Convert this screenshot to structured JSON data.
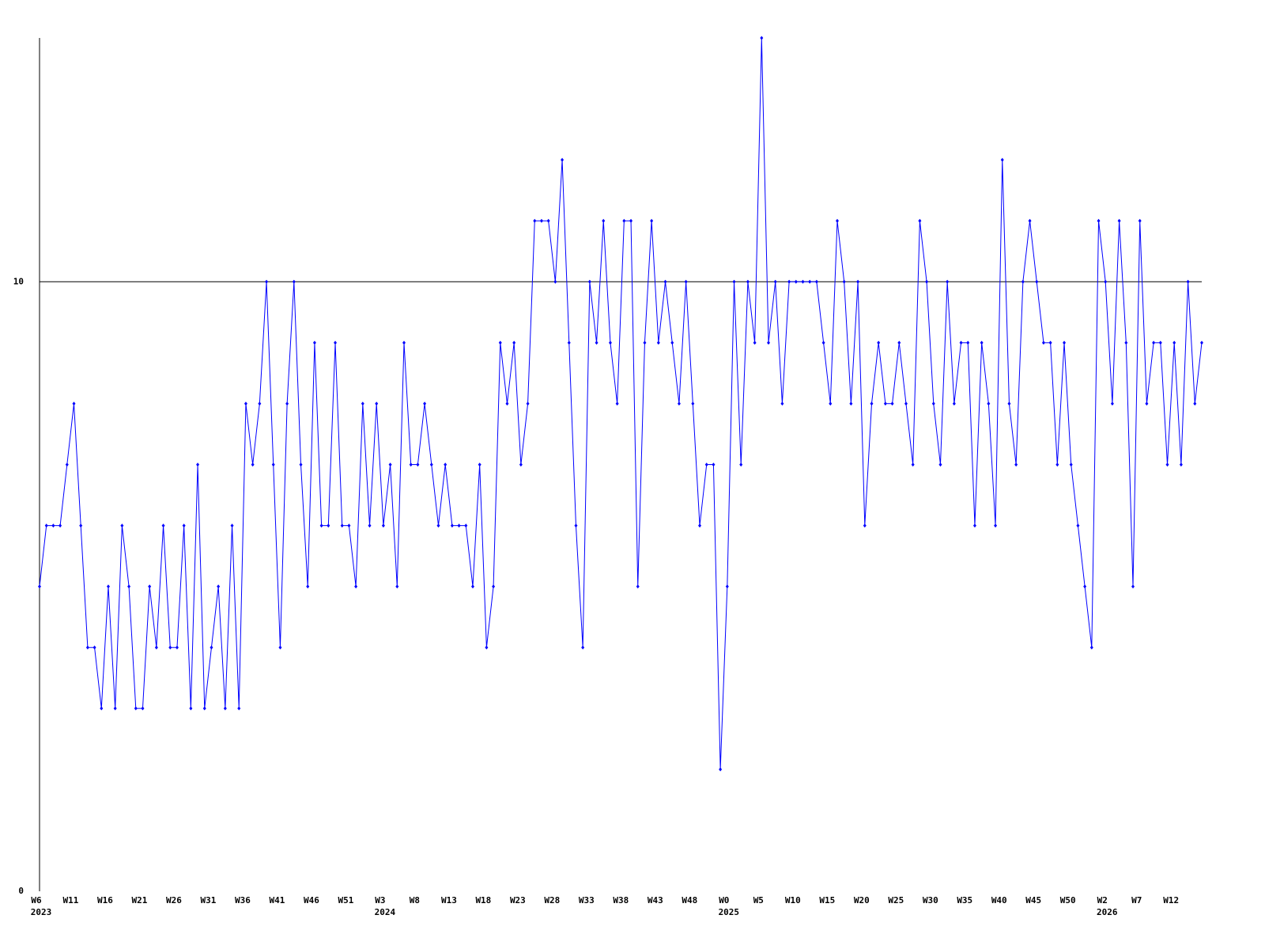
{
  "chart_data": {
    "type": "line",
    "categories": [
      "W6",
      null,
      null,
      null,
      null,
      "W11",
      null,
      null,
      null,
      null,
      "W16",
      null,
      null,
      null,
      null,
      "W21",
      null,
      null,
      null,
      null,
      "W26",
      null,
      null,
      null,
      null,
      "W31",
      null,
      null,
      null,
      null,
      "W36",
      null,
      null,
      null,
      null,
      "W41",
      null,
      null,
      null,
      null,
      "W46",
      null,
      null,
      null,
      null,
      "W51",
      null,
      null,
      null,
      null,
      "W3",
      null,
      null,
      null,
      null,
      "W8",
      null,
      null,
      null,
      null,
      "W13",
      null,
      null,
      null,
      null,
      "W18",
      null,
      null,
      null,
      null,
      "W23",
      null,
      null,
      null,
      null,
      "W28",
      null,
      null,
      null,
      null,
      "W33",
      null,
      null,
      null,
      null,
      "W38",
      null,
      null,
      null,
      null,
      "W43",
      null,
      null,
      null,
      null,
      "W48",
      null,
      null,
      null,
      null,
      "W0",
      null,
      null,
      null,
      null,
      "W5",
      null,
      null,
      null,
      null,
      "W10",
      null,
      null,
      null,
      null,
      "W15",
      null,
      null,
      null,
      null,
      "W20",
      null,
      null,
      null,
      null,
      "W25",
      null,
      null,
      null,
      null,
      "W30",
      null,
      null,
      null,
      null,
      "W35",
      null,
      null,
      null,
      null,
      "W40",
      null,
      null,
      null,
      null,
      "W45",
      null,
      null,
      null,
      null,
      "W50",
      null,
      null,
      null,
      null,
      "W2",
      null,
      null,
      null,
      null,
      "W7",
      null,
      null,
      null,
      null,
      "W12",
      null,
      null,
      null,
      null
    ],
    "years": [
      "2023",
      null,
      null,
      null,
      null,
      null,
      null,
      null,
      null,
      null,
      null,
      null,
      null,
      null,
      null,
      null,
      null,
      null,
      null,
      null,
      null,
      null,
      null,
      null,
      null,
      null,
      null,
      null,
      null,
      null,
      null,
      null,
      null,
      null,
      null,
      null,
      null,
      null,
      null,
      null,
      null,
      null,
      null,
      null,
      null,
      null,
      null,
      null,
      null,
      null,
      "2024",
      null,
      null,
      null,
      null,
      null,
      null,
      null,
      null,
      null,
      null,
      null,
      null,
      null,
      null,
      null,
      null,
      null,
      null,
      null,
      null,
      null,
      null,
      null,
      null,
      null,
      null,
      null,
      null,
      null,
      null,
      null,
      null,
      null,
      null,
      null,
      null,
      null,
      null,
      null,
      null,
      null,
      null,
      null,
      null,
      null,
      null,
      null,
      null,
      null,
      "2025",
      null,
      null,
      null,
      null,
      null,
      null,
      null,
      null,
      null,
      null,
      null,
      null,
      null,
      null,
      null,
      null,
      null,
      null,
      null,
      null,
      null,
      null,
      null,
      null,
      null,
      null,
      null,
      null,
      null,
      null,
      null,
      null,
      null,
      null,
      null,
      null,
      null,
      null,
      null,
      null,
      null,
      null,
      null,
      null,
      null,
      null,
      null,
      null,
      null,
      null,
      null,
      null,
      null,
      null,
      "2026",
      null,
      null,
      null,
      null,
      null,
      null,
      null,
      null,
      null,
      null,
      null,
      null,
      null,
      null
    ],
    "series": [
      {
        "color": "#0000ff",
        "values": [
          5,
          6,
          6,
          6,
          7,
          8,
          6,
          4,
          4,
          3,
          5,
          3,
          6,
          5,
          3,
          3,
          5,
          4,
          6,
          4,
          4,
          6,
          3,
          7,
          3,
          4,
          5,
          3,
          6,
          3,
          8,
          7,
          8,
          10,
          7,
          4,
          8,
          10,
          7,
          5,
          9,
          6,
          6,
          9,
          6,
          6,
          5,
          8,
          6,
          8,
          6,
          7,
          5,
          9,
          7,
          7,
          8,
          7,
          6,
          7,
          6,
          6,
          6,
          5,
          7,
          4,
          5,
          9,
          8,
          9,
          7,
          8,
          11,
          11,
          11,
          10,
          12,
          9,
          6,
          4,
          10,
          9,
          11,
          9,
          8,
          11,
          11,
          5,
          9,
          11,
          9,
          10,
          9,
          8,
          10,
          8,
          6,
          7,
          7,
          2,
          5,
          10,
          7,
          10,
          9,
          14,
          9,
          10,
          8,
          10,
          10,
          10,
          10,
          10,
          9,
          8,
          11,
          10,
          8,
          10,
          6,
          8,
          9,
          8,
          8,
          9,
          8,
          7,
          11,
          10,
          8,
          7,
          10,
          8,
          9,
          9,
          6,
          9,
          8,
          6,
          12,
          8,
          7,
          10,
          11,
          10,
          9,
          9,
          7,
          9,
          7,
          6,
          5,
          4,
          11,
          10,
          8,
          11,
          9,
          5,
          11,
          8,
          9,
          9,
          7,
          9,
          7,
          10,
          8,
          9
        ]
      }
    ],
    "ylim": [
      0,
      14
    ],
    "yticks": [
      0,
      10
    ],
    "grid": true
  }
}
